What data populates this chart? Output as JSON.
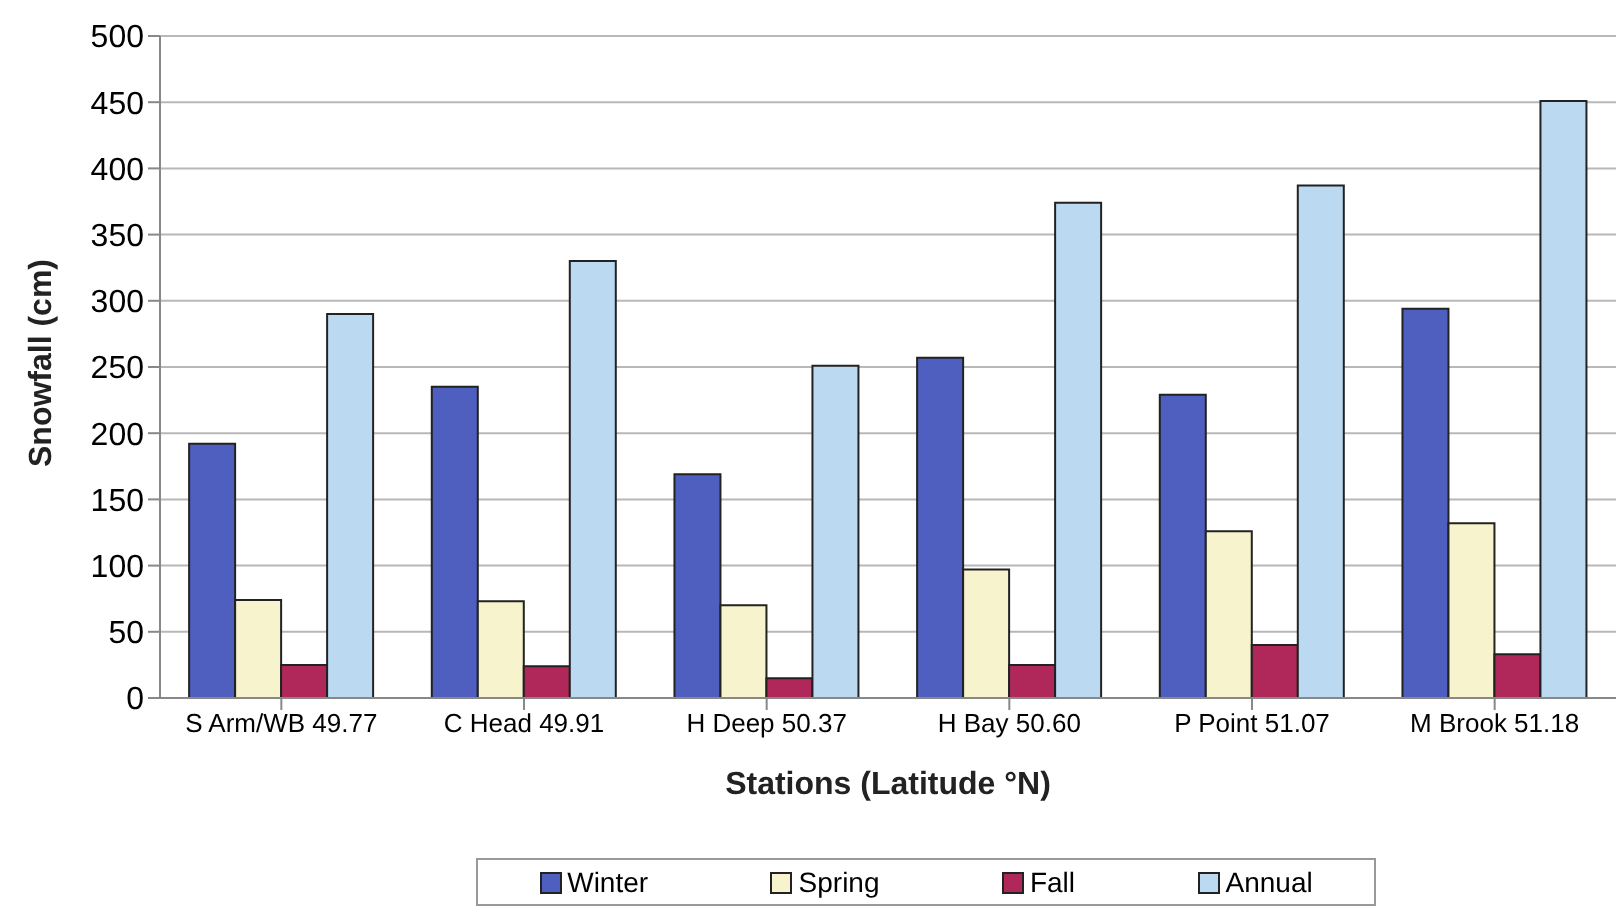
{
  "chart_data": {
    "type": "bar",
    "xlabel": "Stations (Latitude °N)",
    "ylabel": "Snowfall (cm)",
    "categories": [
      "S Arm/WB 49.77",
      "C Head 49.91",
      "H Deep 50.37",
      "H Bay 50.60",
      "P Point 51.07",
      "M Brook 51.18"
    ],
    "series": [
      {
        "name": "Winter",
        "color": "#4f5fbf",
        "values": [
          192,
          235,
          169,
          257,
          229,
          294
        ]
      },
      {
        "name": "Spring",
        "color": "#f7f3cd",
        "values": [
          74,
          73,
          70,
          97,
          126,
          132
        ]
      },
      {
        "name": "Fall",
        "color": "#b0285a",
        "values": [
          25,
          24,
          15,
          25,
          40,
          33
        ]
      },
      {
        "name": "Annual",
        "color": "#bcd9f2",
        "values": [
          290,
          330,
          251,
          374,
          387,
          451
        ]
      }
    ],
    "ylim": [
      0,
      500
    ],
    "yticks": [
      0,
      50,
      100,
      150,
      200,
      250,
      300,
      350,
      400,
      450,
      500
    ],
    "grid": "y",
    "legend": "bottom"
  }
}
